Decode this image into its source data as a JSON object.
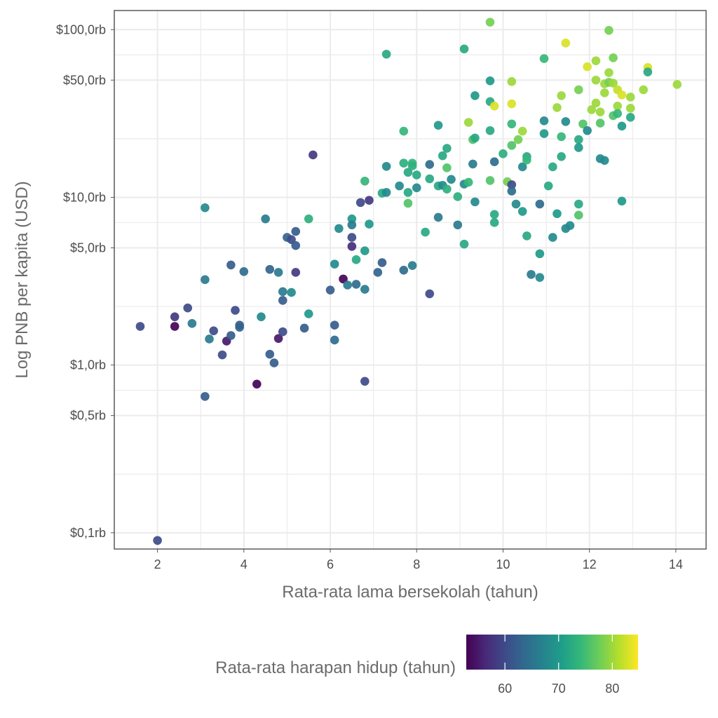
{
  "chart_data": {
    "type": "scatter",
    "xlabel": "Rata-rata lama bersekolah (tahun)",
    "ylabel": "Log PNB per kapita (USD)",
    "x_scale": "linear",
    "y_scale": "log10",
    "xlim": [
      1.0,
      14.7
    ],
    "ylim": [
      80,
      130000
    ],
    "x_ticks": [
      2,
      4,
      6,
      8,
      10,
      12,
      14
    ],
    "x_tick_labels": [
      "2",
      "4",
      "6",
      "8",
      "10",
      "12",
      "14"
    ],
    "y_ticks": [
      100,
      500,
      1000,
      5000,
      10000,
      50000,
      100000
    ],
    "y_tick_labels": [
      "$0,1rb",
      "$0,5rb",
      "$1,0rb",
      "$5,0rb",
      "$10,0rb",
      "$50,0rb",
      "$100,0rb"
    ],
    "grid": true,
    "color": {
      "label": "Rata-rata harapan hidup (tahun)",
      "colormap": "viridis",
      "range": [
        52.8,
        84.8
      ],
      "ticks": [
        60,
        70,
        80
      ],
      "tick_labels": [
        "60",
        "70",
        "80"
      ],
      "legend_position": "bottom"
    },
    "point_fields": [
      "school_years",
      "gni_per_capita_usd",
      "life_expectancy"
    ],
    "points": [
      [
        1.6,
        1700,
        60
      ],
      [
        2.4,
        1940,
        58
      ],
      [
        2.4,
        1700,
        53
      ],
      [
        2.7,
        2190,
        60
      ],
      [
        2.8,
        1770,
        66
      ],
      [
        2.0,
        90,
        60
      ],
      [
        3.1,
        8670,
        68
      ],
      [
        3.1,
        3230,
        66
      ],
      [
        3.1,
        650,
        62
      ],
      [
        3.2,
        1430,
        66
      ],
      [
        3.3,
        1600,
        60
      ],
      [
        3.6,
        1390,
        55
      ],
      [
        3.5,
        1150,
        60
      ],
      [
        3.7,
        1500,
        62
      ],
      [
        3.8,
        2120,
        60
      ],
      [
        3.7,
        3950,
        62
      ],
      [
        3.9,
        1730,
        62
      ],
      [
        3.9,
        1680,
        63
      ],
      [
        4.0,
        3610,
        64
      ],
      [
        4.3,
        770,
        53
      ],
      [
        4.4,
        1940,
        68
      ],
      [
        4.5,
        7440,
        66
      ],
      [
        4.6,
        1160,
        62
      ],
      [
        4.6,
        3720,
        63
      ],
      [
        4.7,
        1030,
        62
      ],
      [
        4.8,
        1440,
        55
      ],
      [
        4.8,
        3570,
        66
      ],
      [
        4.9,
        1580,
        60
      ],
      [
        4.9,
        2430,
        62
      ],
      [
        4.9,
        2740,
        66
      ],
      [
        5.0,
        5770,
        63
      ],
      [
        5.1,
        2710,
        68
      ],
      [
        5.1,
        5600,
        60
      ],
      [
        5.2,
        6260,
        62
      ],
      [
        5.2,
        5160,
        62
      ],
      [
        5.2,
        3570,
        58
      ],
      [
        5.4,
        1660,
        62
      ],
      [
        5.5,
        7440,
        73
      ],
      [
        5.5,
        2020,
        70
      ],
      [
        5.6,
        17900,
        58
      ],
      [
        6.0,
        2800,
        62
      ],
      [
        6.1,
        4000,
        68
      ],
      [
        6.1,
        1730,
        62
      ],
      [
        6.1,
        1410,
        64
      ],
      [
        6.2,
        6520,
        68
      ],
      [
        6.3,
        3260,
        53
      ],
      [
        6.4,
        3000,
        66
      ],
      [
        6.5,
        7440,
        70
      ],
      [
        6.5,
        6850,
        66
      ],
      [
        6.5,
        5100,
        57
      ],
      [
        6.5,
        5770,
        60
      ],
      [
        6.6,
        3030,
        64
      ],
      [
        6.6,
        4250,
        72
      ],
      [
        6.7,
        9310,
        60
      ],
      [
        6.8,
        2830,
        66
      ],
      [
        6.8,
        4800,
        70
      ],
      [
        6.8,
        800,
        60
      ],
      [
        6.8,
        12500,
        74
      ],
      [
        6.9,
        9600,
        58
      ],
      [
        6.9,
        6930,
        70
      ],
      [
        7.1,
        3570,
        63
      ],
      [
        7.2,
        4080,
        62
      ],
      [
        7.2,
        10600,
        72
      ],
      [
        7.3,
        10700,
        68
      ],
      [
        7.3,
        15300,
        68
      ],
      [
        7.3,
        71400,
        72
      ],
      [
        7.6,
        11700,
        68
      ],
      [
        7.7,
        24800,
        74
      ],
      [
        7.7,
        16000,
        73
      ],
      [
        7.7,
        3680,
        64
      ],
      [
        7.8,
        10700,
        72
      ],
      [
        7.8,
        14100,
        72
      ],
      [
        7.8,
        9220,
        76
      ],
      [
        7.9,
        16000,
        74
      ],
      [
        7.9,
        15400,
        73
      ],
      [
        7.9,
        3920,
        66
      ],
      [
        8.0,
        13600,
        72
      ],
      [
        8.0,
        11400,
        68
      ],
      [
        8.2,
        6200,
        72
      ],
      [
        8.3,
        15700,
        64
      ],
      [
        8.3,
        12900,
        72
      ],
      [
        8.3,
        2660,
        60
      ],
      [
        8.5,
        26900,
        70
      ],
      [
        8.5,
        11700,
        72
      ],
      [
        8.5,
        7600,
        66
      ],
      [
        8.6,
        17700,
        72
      ],
      [
        8.6,
        11800,
        68
      ],
      [
        8.7,
        19600,
        72
      ],
      [
        8.7,
        15000,
        76
      ],
      [
        8.7,
        11200,
        73
      ],
      [
        8.8,
        12800,
        68
      ],
      [
        8.95,
        10100,
        73
      ],
      [
        8.95,
        6850,
        66
      ],
      [
        9.1,
        76700,
        72
      ],
      [
        9.1,
        12000,
        68
      ],
      [
        9.1,
        5260,
        72
      ],
      [
        9.2,
        28000,
        80
      ],
      [
        9.2,
        12300,
        74
      ],
      [
        9.3,
        15800,
        66
      ],
      [
        9.3,
        22100,
        76
      ],
      [
        9.35,
        22600,
        72
      ],
      [
        9.35,
        40400,
        70
      ],
      [
        9.35,
        9400,
        68
      ],
      [
        9.7,
        110700,
        78
      ],
      [
        9.7,
        49500,
        70
      ],
      [
        9.7,
        37200,
        72
      ],
      [
        9.7,
        25000,
        72
      ],
      [
        9.7,
        12600,
        76
      ],
      [
        9.8,
        16300,
        64
      ],
      [
        9.8,
        35000,
        83
      ],
      [
        9.8,
        7910,
        72
      ],
      [
        9.8,
        7080,
        72
      ],
      [
        10.0,
        18200,
        73
      ],
      [
        10.1,
        12400,
        78
      ],
      [
        10.2,
        11900,
        60
      ],
      [
        10.2,
        10900,
        64
      ],
      [
        10.2,
        49000,
        80
      ],
      [
        10.2,
        36100,
        83
      ],
      [
        10.2,
        27400,
        74
      ],
      [
        10.2,
        20400,
        76
      ],
      [
        10.3,
        9120,
        68
      ],
      [
        10.35,
        22100,
        78
      ],
      [
        10.45,
        24800,
        80
      ],
      [
        10.45,
        8240,
        70
      ],
      [
        10.45,
        15200,
        68
      ],
      [
        10.55,
        17500,
        72
      ],
      [
        10.55,
        16700,
        74
      ],
      [
        10.55,
        5890,
        72
      ],
      [
        10.65,
        3470,
        66
      ],
      [
        10.85,
        3330,
        68
      ],
      [
        10.85,
        4610,
        70
      ],
      [
        10.85,
        9120,
        64
      ],
      [
        10.95,
        67200,
        74
      ],
      [
        10.95,
        28600,
        68
      ],
      [
        10.95,
        24000,
        70
      ],
      [
        11.05,
        11700,
        72
      ],
      [
        11.15,
        15200,
        72
      ],
      [
        11.15,
        5770,
        68
      ],
      [
        11.25,
        34300,
        80
      ],
      [
        11.25,
        7990,
        70
      ],
      [
        11.35,
        17500,
        72
      ],
      [
        11.35,
        23000,
        74
      ],
      [
        11.35,
        40400,
        80
      ],
      [
        11.45,
        28300,
        68
      ],
      [
        11.45,
        83200,
        83
      ],
      [
        11.45,
        6520,
        68
      ],
      [
        11.55,
        6790,
        68
      ],
      [
        11.75,
        43800,
        78
      ],
      [
        11.75,
        22100,
        72
      ],
      [
        11.75,
        19800,
        70
      ],
      [
        11.75,
        9120,
        72
      ],
      [
        11.75,
        7830,
        76
      ],
      [
        11.85,
        27400,
        76
      ],
      [
        11.95,
        25000,
        68
      ],
      [
        11.95,
        60100,
        83
      ],
      [
        12.05,
        33300,
        80
      ],
      [
        12.15,
        65200,
        80
      ],
      [
        12.15,
        50000,
        80
      ],
      [
        12.15,
        36500,
        80
      ],
      [
        12.25,
        27700,
        76
      ],
      [
        12.25,
        32300,
        80
      ],
      [
        12.25,
        17000,
        68
      ],
      [
        12.35,
        16600,
        68
      ],
      [
        12.35,
        47500,
        80
      ],
      [
        12.35,
        42000,
        80
      ],
      [
        12.45,
        99000,
        78
      ],
      [
        12.45,
        55400,
        80
      ],
      [
        12.45,
        48500,
        78
      ],
      [
        12.55,
        67900,
        78
      ],
      [
        12.55,
        48000,
        80
      ],
      [
        12.55,
        30700,
        76
      ],
      [
        12.65,
        43800,
        82
      ],
      [
        12.65,
        35000,
        80
      ],
      [
        12.65,
        31600,
        74
      ],
      [
        12.75,
        40800,
        83
      ],
      [
        12.75,
        26600,
        70
      ],
      [
        12.75,
        9500,
        70
      ],
      [
        12.95,
        39600,
        80
      ],
      [
        12.95,
        34000,
        80
      ],
      [
        12.95,
        30000,
        72
      ],
      [
        13.25,
        43800,
        80
      ],
      [
        13.35,
        59500,
        83
      ],
      [
        13.35,
        55900,
        72
      ],
      [
        14.03,
        47100,
        80
      ]
    ]
  }
}
